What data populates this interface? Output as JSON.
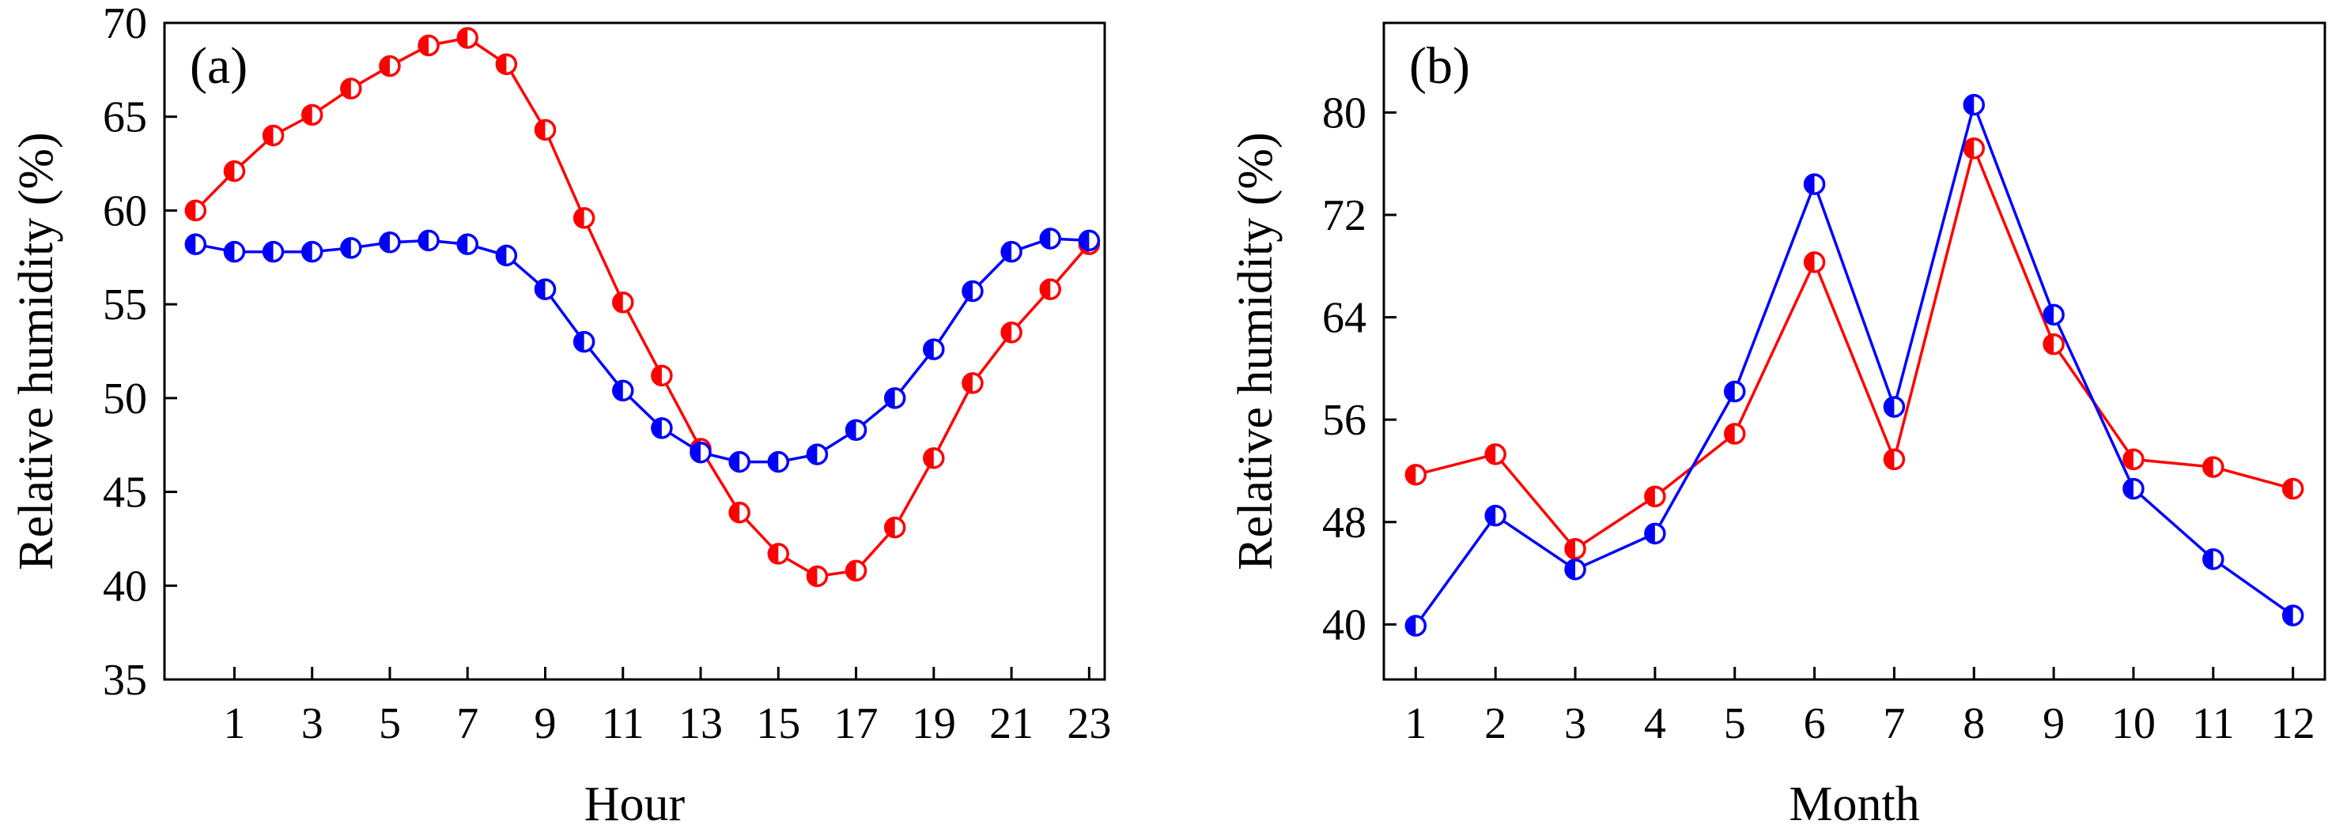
{
  "chart_data": [
    {
      "type": "line",
      "panel_label": "(a)",
      "xlabel": "Hour",
      "ylabel": "Relative humidity (%)",
      "x": [
        0,
        1,
        2,
        3,
        4,
        5,
        6,
        7,
        8,
        9,
        10,
        11,
        12,
        13,
        14,
        15,
        16,
        17,
        18,
        19,
        20,
        21,
        22,
        23
      ],
      "xticks": [
        1,
        3,
        5,
        7,
        9,
        11,
        13,
        15,
        17,
        19,
        21,
        23
      ],
      "yticks": [
        35,
        40,
        45,
        50,
        55,
        60,
        65,
        70
      ],
      "xlim": [
        -0.8,
        23.4
      ],
      "ylim": [
        35,
        70
      ],
      "grid": false,
      "series": [
        {
          "color": "#ff0000",
          "marker_fill": "left-half",
          "values": [
            60.0,
            62.1,
            64.0,
            65.1,
            66.5,
            67.7,
            68.8,
            69.2,
            67.8,
            64.3,
            59.6,
            55.1,
            51.2,
            47.3,
            43.9,
            41.7,
            40.5,
            40.8,
            43.1,
            46.8,
            50.8,
            53.5,
            55.8,
            58.2
          ]
        },
        {
          "color": "#0000ff",
          "marker_fill": "left-half",
          "values": [
            58.2,
            57.8,
            57.8,
            57.8,
            58.0,
            58.3,
            58.4,
            58.2,
            57.6,
            55.8,
            53.0,
            50.4,
            48.4,
            47.1,
            46.6,
            46.6,
            47.0,
            48.3,
            50.0,
            52.6,
            55.7,
            57.8,
            58.5,
            58.4
          ]
        }
      ]
    },
    {
      "type": "line",
      "panel_label": "(b)",
      "xlabel": "Month",
      "ylabel": "Relative humidity (%)",
      "x": [
        1,
        2,
        3,
        4,
        5,
        6,
        7,
        8,
        9,
        10,
        11,
        12
      ],
      "xticks": [
        1,
        2,
        3,
        4,
        5,
        6,
        7,
        8,
        9,
        10,
        11,
        12
      ],
      "yticks": [
        40,
        48,
        56,
        64,
        72,
        80
      ],
      "xlim": [
        0.6,
        12.4
      ],
      "ylim": [
        35.7,
        87
      ],
      "grid": false,
      "series": [
        {
          "color": "#ff0000",
          "marker_fill": "left-half",
          "values": [
            51.7,
            53.3,
            45.9,
            50.0,
            54.9,
            68.3,
            52.9,
            77.2,
            61.9,
            52.9,
            52.3,
            50.6
          ]
        },
        {
          "color": "#0000ff",
          "marker_fill": "left-half",
          "values": [
            39.9,
            48.5,
            44.3,
            47.1,
            58.2,
            74.4,
            57.0,
            80.6,
            64.2,
            50.6,
            45.1,
            40.7
          ]
        }
      ]
    }
  ]
}
